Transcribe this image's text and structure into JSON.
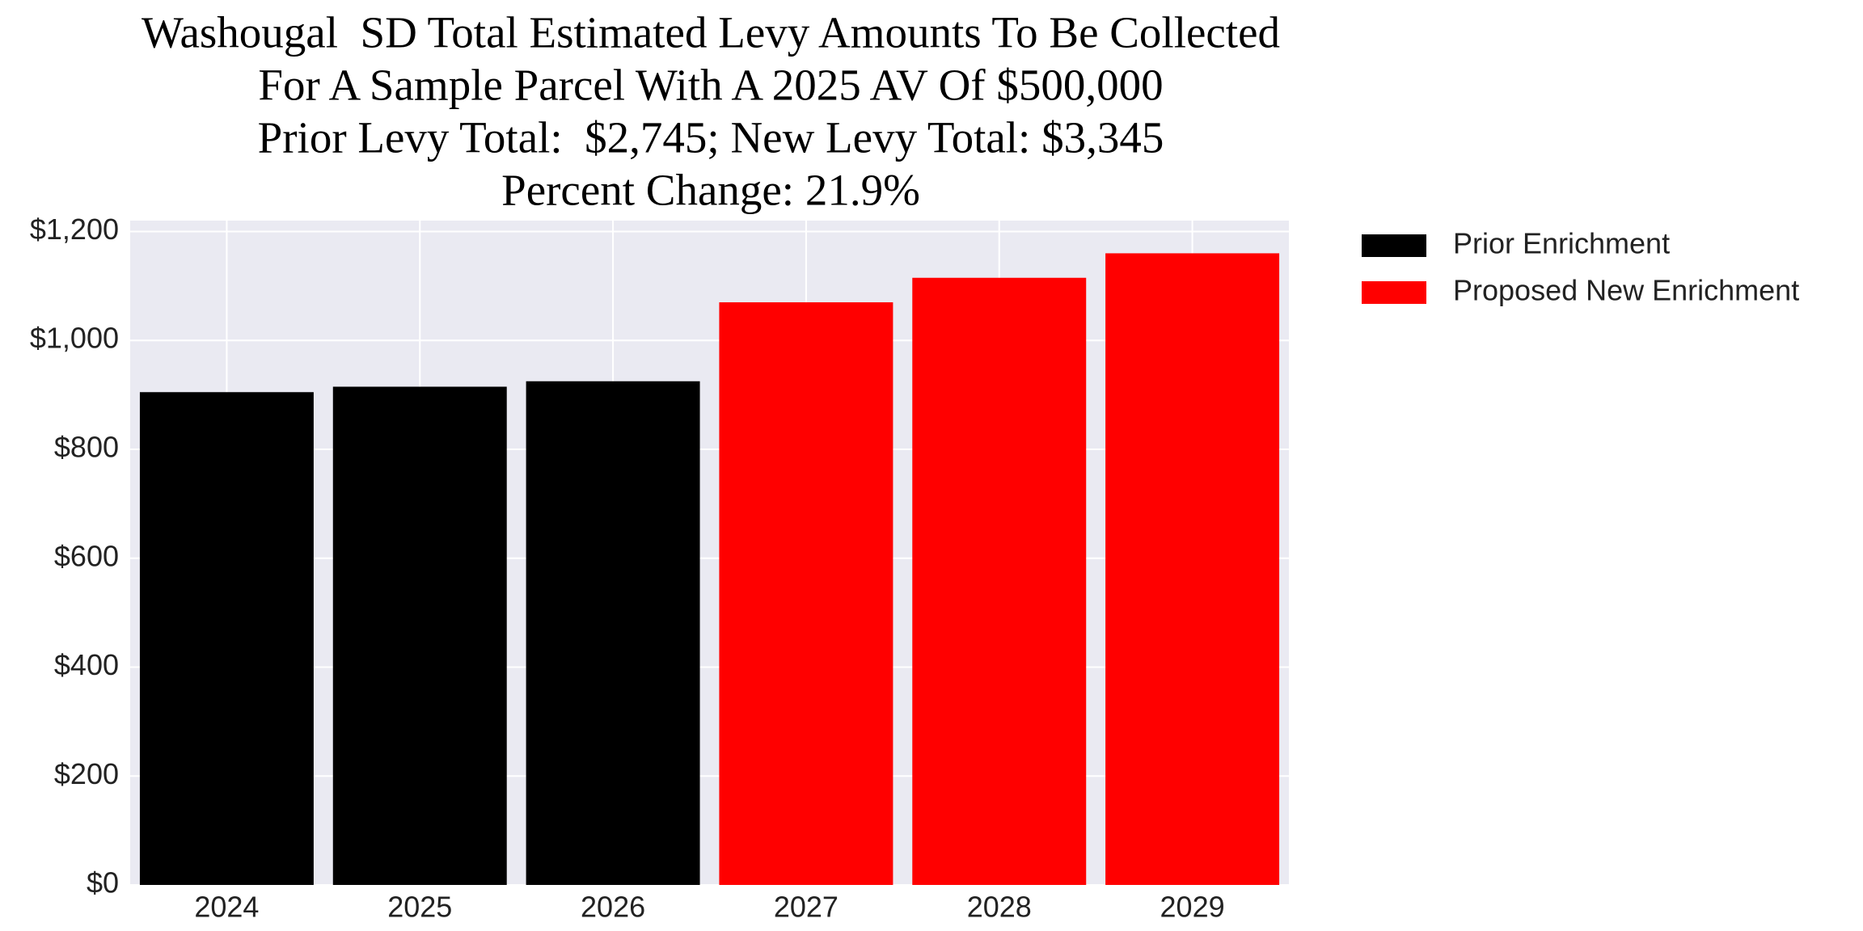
{
  "chart_data": {
    "type": "bar",
    "title": [
      "Washougal  SD Total Estimated Levy Amounts To Be Collected",
      "For A Sample Parcel With A 2025 AV Of $500,000",
      "Prior Levy Total:  $2,745; New Levy Total: $3,345",
      "Percent Change: 21.9%"
    ],
    "categories": [
      "2024",
      "2025",
      "2026",
      "2027",
      "2028",
      "2029"
    ],
    "series": [
      {
        "name": "Prior Enrichment",
        "color": "#000000",
        "values": [
          905,
          915,
          925,
          null,
          null,
          null
        ]
      },
      {
        "name": "Proposed New Enrichment",
        "color": "#ff0000",
        "values": [
          null,
          null,
          null,
          1070,
          1115,
          1160
        ]
      }
    ],
    "ylim": [
      0,
      1220
    ],
    "yticks": [
      {
        "value": 0,
        "label": "$0"
      },
      {
        "value": 200,
        "label": "$200"
      },
      {
        "value": 400,
        "label": "$400"
      },
      {
        "value": 600,
        "label": "$600"
      },
      {
        "value": 800,
        "label": "$800"
      },
      {
        "value": 1000,
        "label": "$1,000"
      },
      {
        "value": 1200,
        "label": "$1,200"
      }
    ],
    "grid": true,
    "legend": "outside-right"
  }
}
